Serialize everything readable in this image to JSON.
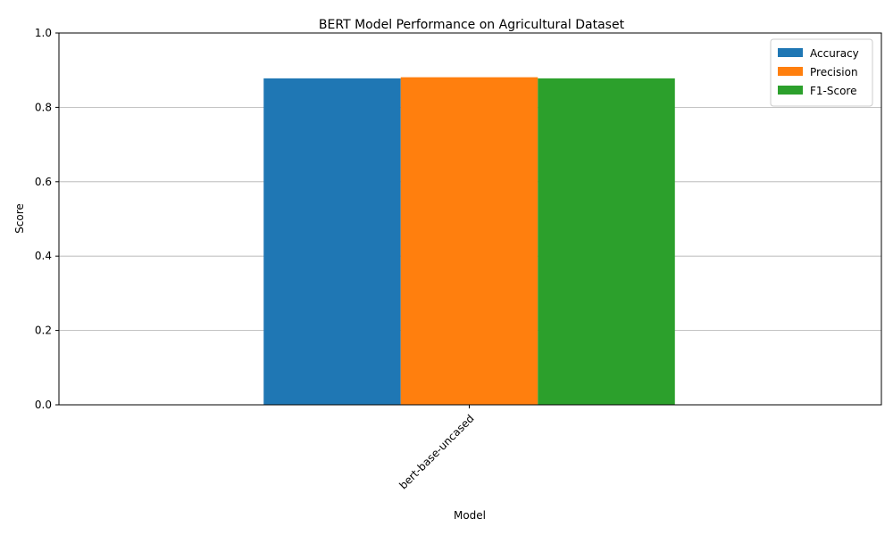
{
  "chart_data": {
    "type": "bar",
    "title": "BERT Model Performance on Agricultural Dataset",
    "xlabel": "Model",
    "ylabel": "Score",
    "categories": [
      "bert-base-uncased"
    ],
    "series": [
      {
        "name": "Accuracy",
        "values": [
          0.878
        ],
        "color": "#1f77b4"
      },
      {
        "name": "Precision",
        "values": [
          0.881
        ],
        "color": "#ff7f0e"
      },
      {
        "name": "F1-Score",
        "values": [
          0.878
        ],
        "color": "#2ca02c"
      }
    ],
    "ylim": [
      0,
      1.0
    ],
    "yticks": [
      "0.0",
      "0.2",
      "0.4",
      "0.6",
      "0.8",
      "1.0"
    ],
    "grid": "y",
    "legend": "top-right"
  }
}
